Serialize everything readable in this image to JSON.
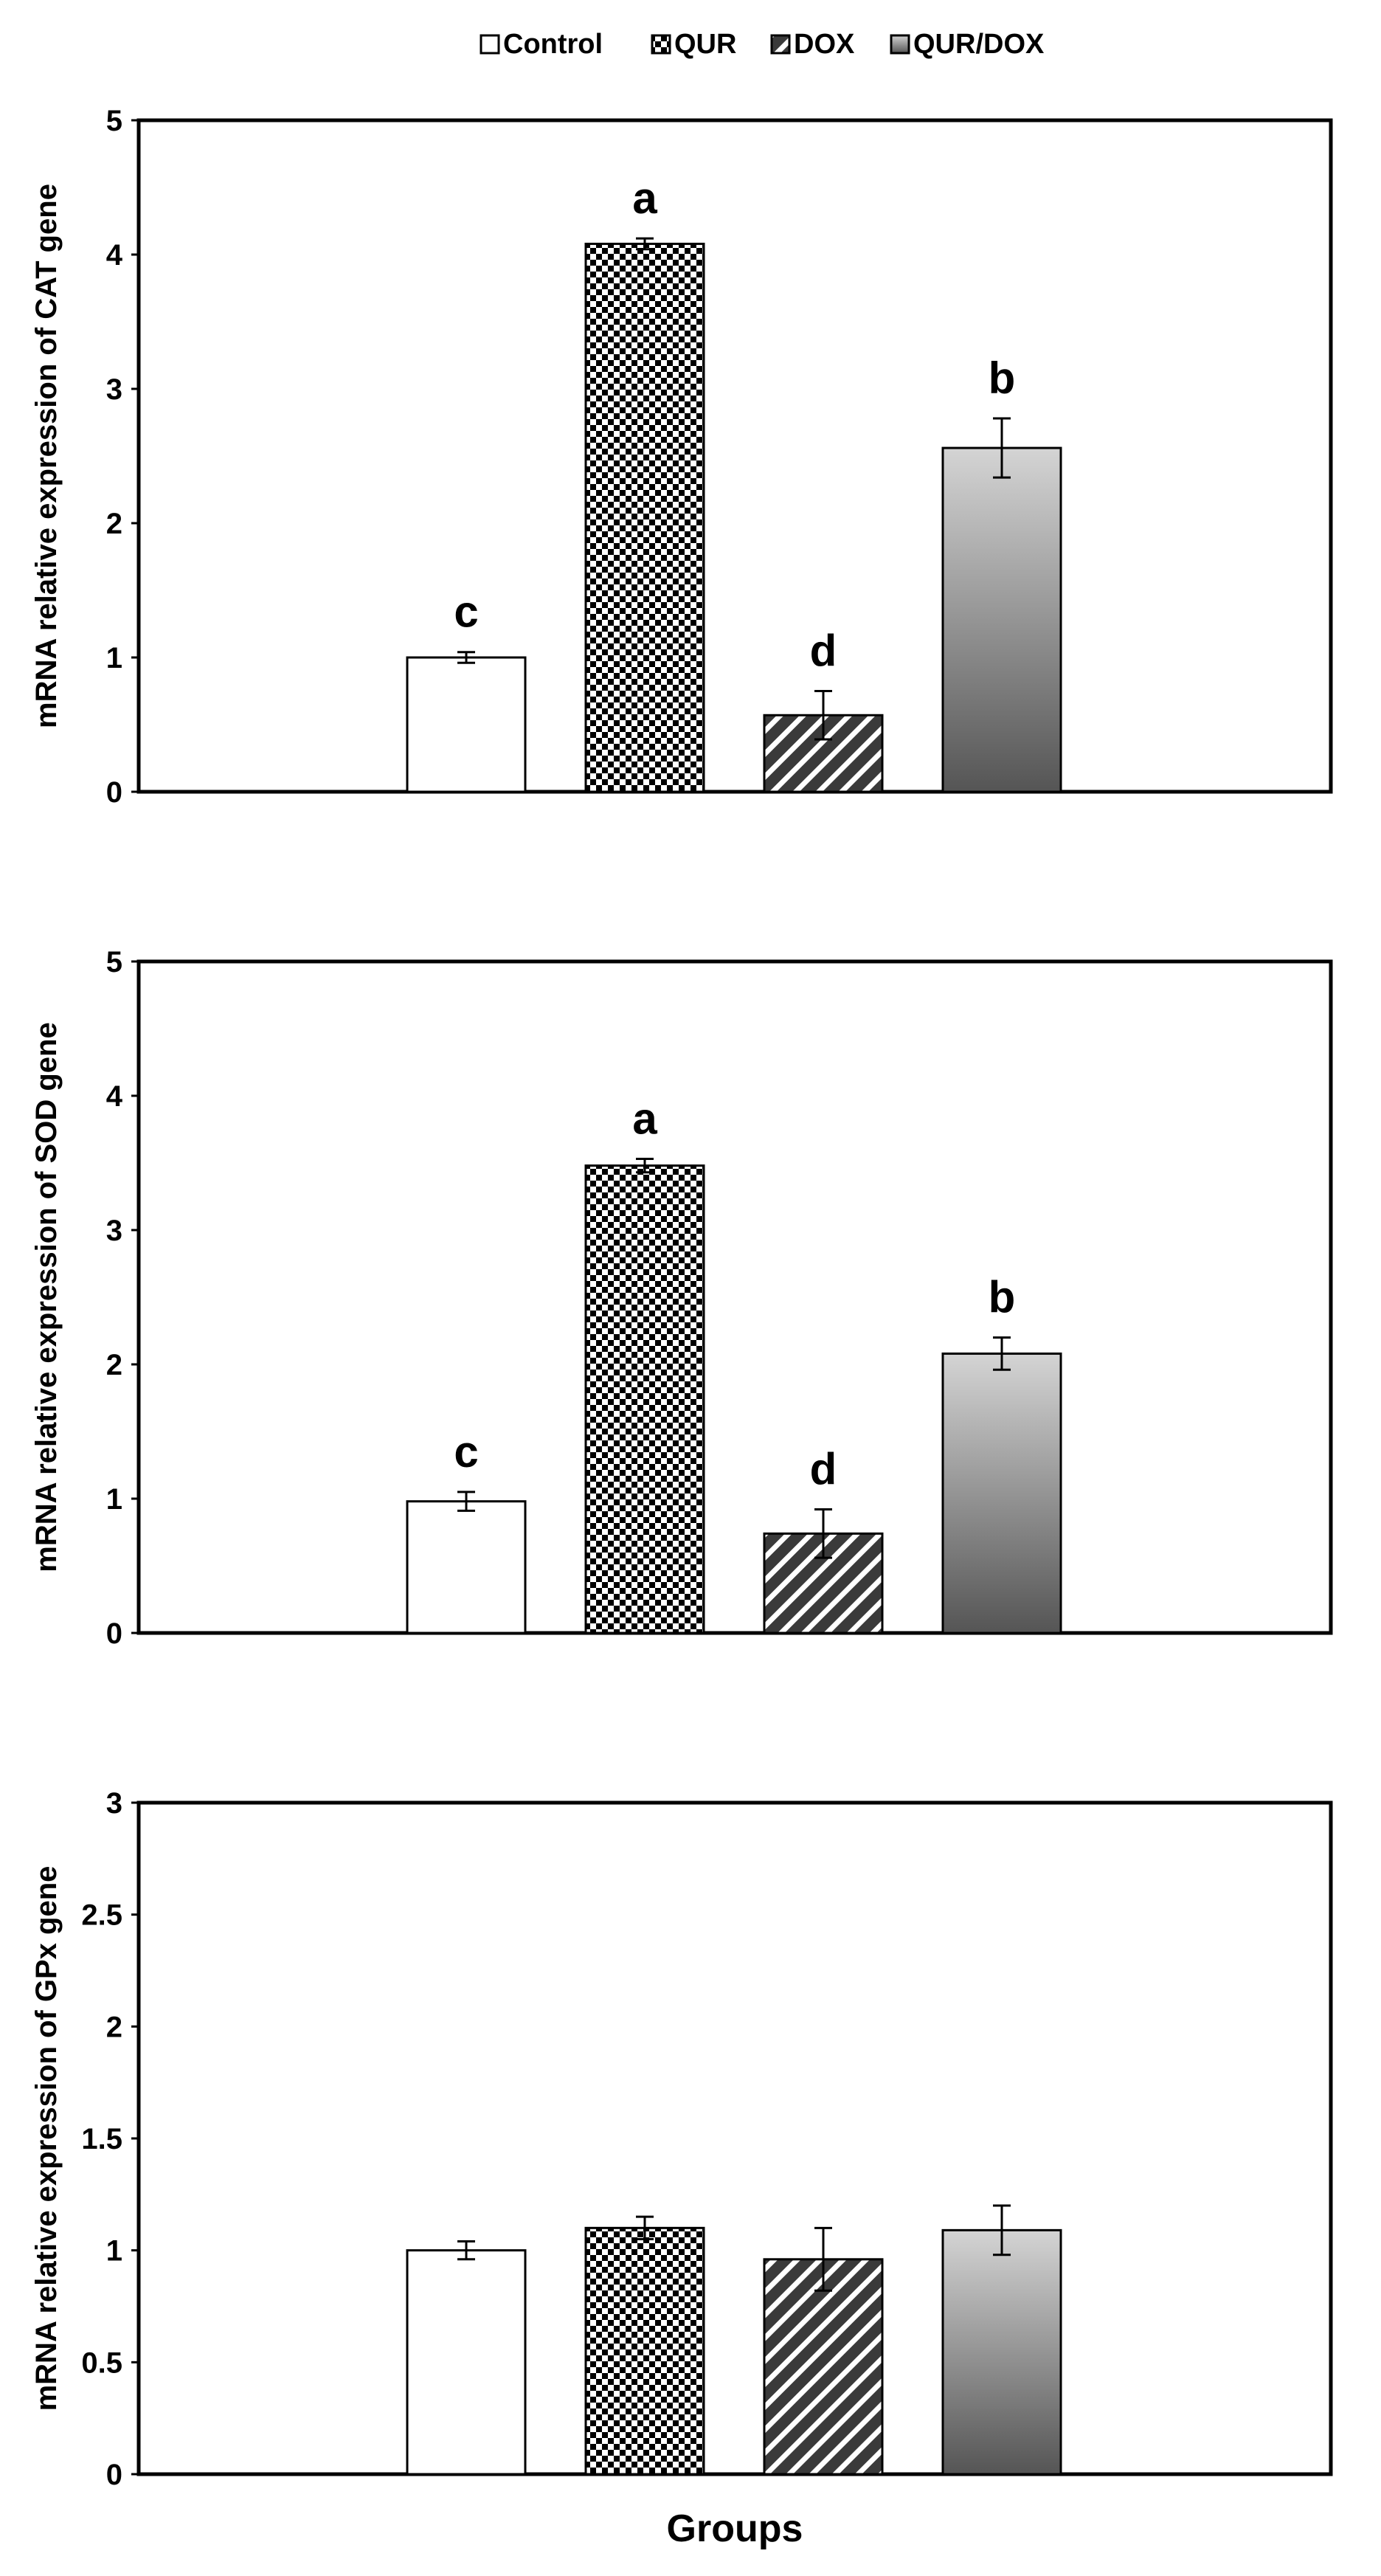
{
  "legend": {
    "items": [
      {
        "label": "Control",
        "fill": "control"
      },
      {
        "label": "QUR",
        "fill": "checker"
      },
      {
        "label": "DOX",
        "fill": "hatch"
      },
      {
        "label": "QUR/DOX",
        "fill": "gradient"
      }
    ]
  },
  "xlabel": "Groups",
  "colors": {
    "axis": "#000000",
    "control_fill": "#ffffff",
    "hatch_bg": "#3a3a3a",
    "gradient_top": "#d4d4d4",
    "gradient_bottom": "#555555"
  },
  "chart_data": [
    {
      "type": "bar",
      "categories": [
        "Control",
        "QUR",
        "DOX",
        "QUR/DOX"
      ],
      "values": [
        1.0,
        4.08,
        0.57,
        2.56
      ],
      "errors": [
        0.04,
        0.04,
        0.18,
        0.22
      ],
      "sig_labels": [
        "c",
        "a",
        "d",
        "b"
      ],
      "ylabel": "mRNA relative expression of CAT gene",
      "ylim": [
        0,
        5
      ],
      "yticks": [
        "0",
        "1",
        "2",
        "3",
        "4",
        "5"
      ],
      "grid": false
    },
    {
      "type": "bar",
      "categories": [
        "Control",
        "QUR",
        "DOX",
        "QUR/DOX"
      ],
      "values": [
        0.98,
        3.48,
        0.74,
        2.08
      ],
      "errors": [
        0.07,
        0.05,
        0.18,
        0.12
      ],
      "sig_labels": [
        "c",
        "a",
        "d",
        "b"
      ],
      "ylabel": "mRNA relative expression of SOD gene",
      "ylim": [
        0,
        5
      ],
      "yticks": [
        "0",
        "1",
        "2",
        "3",
        "4",
        "5"
      ],
      "grid": false
    },
    {
      "type": "bar",
      "categories": [
        "Control",
        "QUR",
        "DOX",
        "QUR/DOX"
      ],
      "values": [
        1.0,
        1.1,
        0.96,
        1.09
      ],
      "errors": [
        0.04,
        0.05,
        0.14,
        0.11
      ],
      "sig_labels": [
        "",
        "",
        "",
        ""
      ],
      "ylabel": "mRNA relative expression of GPx gene",
      "ylim": [
        0,
        3
      ],
      "yticks": [
        "0",
        "0.5",
        "1",
        "1.5",
        "2",
        "2.5",
        "3"
      ],
      "grid": false
    }
  ]
}
